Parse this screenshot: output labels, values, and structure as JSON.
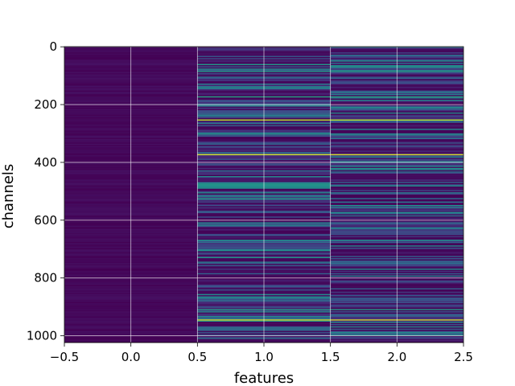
{
  "chart_data": {
    "type": "heatmap",
    "title": "",
    "xlabel": "features",
    "ylabel": "channels",
    "xlim": [
      -0.5,
      2.5
    ],
    "ylim": [
      1023.5,
      -0.5
    ],
    "y_inverted": true,
    "n_rows": 1024,
    "n_cols": 3,
    "colormap": "viridis",
    "grid": true,
    "grid_color": "#ffffff",
    "x_ticks": [
      -0.5,
      0.0,
      0.5,
      1.0,
      1.5,
      2.0,
      2.5
    ],
    "x_tick_labels": [
      "−0.5",
      "0.0",
      "0.5",
      "1.0",
      "1.5",
      "2.0",
      "2.5"
    ],
    "y_ticks": [
      0,
      200,
      400,
      600,
      800,
      1000
    ],
    "y_tick_labels": [
      "0",
      "200",
      "400",
      "600",
      "800",
      "1000"
    ],
    "columns": [
      {
        "x": 0,
        "description": "near-zero values across all channels",
        "base_level": 0.02
      },
      {
        "x": 1,
        "description": "varying values per channel",
        "base_level": 0.2
      },
      {
        "x": 2,
        "description": "varying values per channel",
        "base_level": 0.2
      }
    ],
    "highlight_rows": [
      {
        "channel": 85,
        "value": 0.55
      },
      {
        "channel": 175,
        "value": 0.6
      },
      {
        "channel": 255,
        "value": 0.9
      },
      {
        "channel": 373,
        "value": 0.95
      },
      {
        "channel": 480,
        "value": 0.5
      },
      {
        "channel": 670,
        "value": 0.5
      },
      {
        "channel": 910,
        "value": 0.55
      },
      {
        "channel": 945,
        "value": 0.95
      }
    ]
  }
}
